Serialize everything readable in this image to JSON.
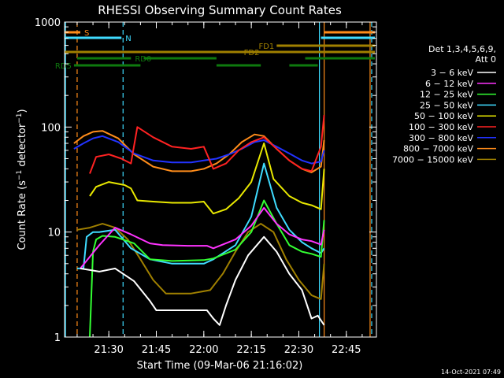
{
  "chart_data": {
    "type": "line",
    "title": "RHESSI Observing Summary Count Rates",
    "xlabel": "Start Time (09-Mar-06 21:16:02)",
    "ylabel": "Count Rate (s⁻¹ detector⁻¹)",
    "ylabel_parts": [
      "Count Rate (s",
      "−1",
      " detector",
      "−1",
      ")"
    ],
    "y_scale": "log",
    "ylim": [
      1,
      1000
    ],
    "xlim": [
      "21:16:02",
      "22:54:30"
    ],
    "x_tick_labels": [
      "21:30",
      "21:45",
      "22:00",
      "22:15",
      "22:30",
      "22:45"
    ],
    "y_tick_labels": [
      "1",
      "10",
      "100",
      "1000"
    ],
    "legend_position": "right",
    "legend_header": [
      "Det 1,3,4,5,6,9,",
      "Att 0"
    ],
    "timestamp": "14-Oct-2021 07:49",
    "flags": [
      {
        "label": "S",
        "color": "#ff8c1a",
        "start": "21:16",
        "end": "21:21",
        "label_side": "right"
      },
      {
        "label": "S",
        "color": "#ff8c1a",
        "start": "22:38",
        "end": "22:54",
        "label_side": "none"
      },
      {
        "label": "N",
        "color": "#3fdcff",
        "start": "21:16",
        "end": "21:34",
        "label_side": "right"
      },
      {
        "label": "N",
        "color": "#3fdcff",
        "start": "22:37",
        "end": "22:54",
        "label_side": "none"
      },
      {
        "label": "FD1",
        "color": "#a08000",
        "start": "22:23",
        "end": "22:54",
        "label_side": "left"
      },
      {
        "label": "FD2",
        "color": "#a08000",
        "start": "21:16",
        "end": "22:54",
        "label_side": "mid"
      },
      {
        "label": "RD0",
        "color": "#0e7a0e",
        "start": "21:20",
        "end": "21:37",
        "label_side": "right"
      },
      {
        "label": "RD0",
        "color": "#0e7a0e",
        "start": "21:41",
        "end": "22:04",
        "label_side": "none"
      },
      {
        "label": "RD0",
        "color": "#0e7a0e",
        "start": "22:32",
        "end": "22:54",
        "label_side": "none"
      },
      {
        "label": "RD0",
        "color": "#0e7a0e",
        "start": "21:16",
        "end": "21:16",
        "label_side": "none"
      },
      {
        "label": "RD5",
        "color": "#0e7a0e",
        "start": "21:19",
        "end": "21:40",
        "label_side": "left"
      },
      {
        "label": "RD5",
        "color": "#0e7a0e",
        "start": "22:04",
        "end": "22:18",
        "label_side": "none"
      },
      {
        "label": "RD5",
        "color": "#0e7a0e",
        "start": "22:27",
        "end": "22:36",
        "label_side": "none"
      }
    ],
    "vlines": [
      {
        "time": "21:16:20",
        "color": "#3fdcff",
        "style": "solid"
      },
      {
        "time": "21:20:00",
        "color": "#ff8c1a",
        "style": "dashed"
      },
      {
        "time": "21:34:30",
        "color": "#3fdcff",
        "style": "dashed"
      },
      {
        "time": "22:36:30",
        "color": "#3fdcff",
        "style": "solid"
      },
      {
        "time": "22:38:00",
        "color": "#ff8c1a",
        "style": "solid"
      },
      {
        "time": "22:52:30",
        "color": "#ff8c1a",
        "style": "solid"
      },
      {
        "time": "22:53:00",
        "color": "#3fdcff",
        "style": "dashed"
      }
    ],
    "series": [
      {
        "name": "3 − 6 keV",
        "color": "#ffffff",
        "x": [
          "21:21",
          "21:27",
          "21:32",
          "21:38",
          "21:43",
          "21:45",
          "21:55",
          "22:01",
          "22:03",
          "22:05",
          "22:07",
          "22:10",
          "22:14",
          "22:19",
          "22:23",
          "22:27",
          "22:31",
          "22:34",
          "22:36",
          "22:38"
        ],
        "y": [
          4.5,
          4.2,
          4.5,
          3.4,
          2.2,
          1.8,
          1.8,
          1.8,
          1.5,
          1.3,
          2.0,
          3.5,
          6.0,
          9.0,
          6.5,
          4.0,
          2.8,
          1.5,
          1.6,
          1.3
        ]
      },
      {
        "name": "6 − 12 keV",
        "color": "#ff33ff",
        "x": [
          "21:21",
          "21:27",
          "21:32",
          "21:37",
          "21:43",
          "21:47",
          "21:55",
          "22:01",
          "22:03",
          "22:10",
          "22:15",
          "22:19",
          "22:23",
          "22:27",
          "22:31",
          "22:34",
          "22:37",
          "22:38"
        ],
        "y": [
          4.5,
          7.5,
          11.0,
          9.5,
          7.8,
          7.5,
          7.4,
          7.4,
          7.0,
          8.5,
          11.5,
          17.0,
          12.0,
          9.5,
          8.5,
          8.2,
          7.6,
          10.5
        ]
      },
      {
        "name": "12 − 25 keV",
        "color": "#33ff33",
        "x": [
          "21:24",
          "21:25",
          "21:26",
          "21:28",
          "21:32",
          "21:38",
          "21:43",
          "21:50",
          "22:00",
          "22:03",
          "22:10",
          "22:15",
          "22:19",
          "22:23",
          "22:27",
          "22:31",
          "22:34",
          "22:37",
          "22:38"
        ],
        "y": [
          1.0,
          6.5,
          8.5,
          9.2,
          9.0,
          7.8,
          5.5,
          5.3,
          5.4,
          5.6,
          6.8,
          10.0,
          20.0,
          12.0,
          7.5,
          6.5,
          6.2,
          5.8,
          13.0
        ]
      },
      {
        "name": "25 − 50 keV",
        "color": "#3fdcff",
        "x": [
          "21:20",
          "21:22",
          "21:23",
          "21:25",
          "21:27",
          "21:32",
          "21:37",
          "21:43",
          "21:50",
          "22:00",
          "22:03",
          "22:10",
          "22:15",
          "22:19",
          "22:23",
          "22:27",
          "22:31",
          "22:34",
          "22:37",
          "22:38"
        ],
        "y": [
          4.5,
          4.5,
          9.0,
          10.0,
          10.0,
          10.5,
          7.0,
          5.5,
          5.0,
          5.0,
          5.5,
          7.5,
          14.0,
          45.0,
          17.0,
          10.5,
          8.0,
          7.0,
          6.3,
          7.0
        ]
      },
      {
        "name": "50 − 100 keV",
        "color": "#e8e800",
        "x": [
          "21:24",
          "21:26",
          "21:30",
          "21:35",
          "21:37",
          "21:39",
          "21:44",
          "21:50",
          "21:56",
          "22:00",
          "22:03",
          "22:07",
          "22:11",
          "22:15",
          "22:19",
          "22:22",
          "22:27",
          "22:31",
          "22:34",
          "22:37",
          "22:38"
        ],
        "y": [
          22.0,
          27.0,
          30.0,
          28.0,
          26.0,
          20.0,
          19.5,
          19.0,
          19.0,
          19.5,
          15.0,
          16.5,
          21.0,
          30.0,
          70.0,
          32.0,
          22.0,
          19.0,
          18.0,
          16.5,
          40.0
        ]
      },
      {
        "name": "100 − 300 keV",
        "color": "#ff2222",
        "x": [
          "21:24",
          "21:26",
          "21:30",
          "21:34",
          "21:37",
          "21:39",
          "21:44",
          "21:50",
          "21:56",
          "22:00",
          "22:03",
          "22:07",
          "22:11",
          "22:15",
          "22:19",
          "22:23",
          "22:27",
          "22:31",
          "22:34",
          "22:37",
          "22:38"
        ],
        "y": [
          36.0,
          52.0,
          55.0,
          50.0,
          45.0,
          100.0,
          80.0,
          65.0,
          62.0,
          65.0,
          40.0,
          45.0,
          60.0,
          72.0,
          80.0,
          62.0,
          48.0,
          40.0,
          38.0,
          65.0,
          130.0
        ]
      },
      {
        "name": "300 − 800 keV",
        "color": "#2233ff",
        "x": [
          "21:19",
          "21:22",
          "21:25",
          "21:28",
          "21:33",
          "21:38",
          "21:44",
          "21:50",
          "21:56",
          "22:00",
          "22:04",
          "22:08",
          "22:12",
          "22:16",
          "22:19",
          "22:23",
          "22:27",
          "22:31",
          "22:34",
          "22:37",
          "22:38"
        ],
        "y": [
          62.0,
          70.0,
          78.0,
          82.0,
          72.0,
          56.0,
          48.0,
          46.0,
          46.0,
          48.0,
          50.0,
          55.0,
          62.0,
          72.0,
          75.0,
          65.0,
          56.0,
          48.0,
          45.0,
          47.0,
          60.0
        ]
      },
      {
        "name": "800 − 7000 keV",
        "color": "#ff8c1a",
        "x": [
          "21:19",
          "21:22",
          "21:25",
          "21:28",
          "21:33",
          "21:38",
          "21:44",
          "21:50",
          "21:56",
          "22:00",
          "22:04",
          "22:08",
          "22:12",
          "22:16",
          "22:19",
          "22:23",
          "22:27",
          "22:31",
          "22:34",
          "22:37",
          "22:38"
        ],
        "y": [
          70.0,
          82.0,
          90.0,
          92.0,
          78.0,
          55.0,
          42.0,
          38.0,
          38.0,
          40.0,
          45.0,
          55.0,
          72.0,
          85.0,
          82.0,
          62.0,
          48.0,
          40.0,
          37.0,
          42.0,
          75.0
        ]
      },
      {
        "name": "7000 − 15000 keV",
        "color": "#a08000",
        "x": [
          "21:20",
          "21:24",
          "21:28",
          "21:32",
          "21:36",
          "21:40",
          "21:44",
          "21:48",
          "21:56",
          "22:02",
          "22:06",
          "22:10",
          "22:14",
          "22:18",
          "22:22",
          "22:26",
          "22:30",
          "22:34",
          "22:37",
          "22:38"
        ],
        "y": [
          10.5,
          11.0,
          12.0,
          11.0,
          8.5,
          5.5,
          3.5,
          2.6,
          2.6,
          2.8,
          4.0,
          6.5,
          10.0,
          12.0,
          10.0,
          5.5,
          3.5,
          2.5,
          2.3,
          5.0
        ]
      }
    ]
  }
}
